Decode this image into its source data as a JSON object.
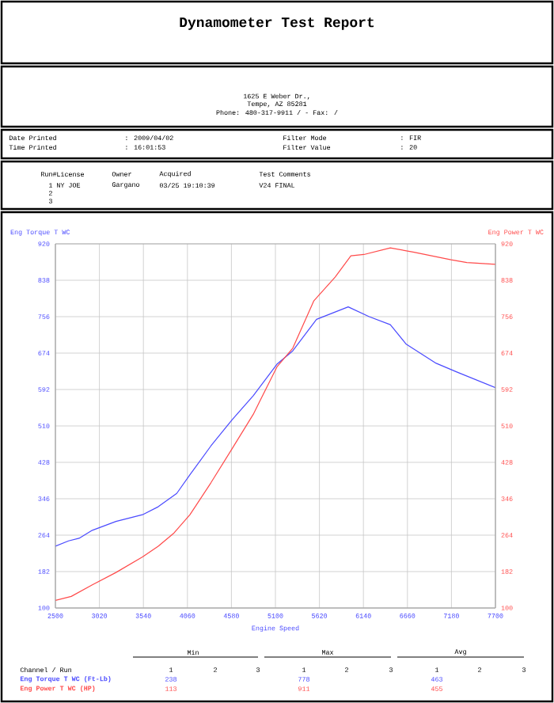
{
  "chart_data": {
    "type": "line",
    "title": "Dynamometer Test Report",
    "xlabel": "Engine Speed",
    "ylabel": "Eng Torque T WC",
    "y2label": "Eng Power T WC",
    "xlim": [
      2500,
      7700
    ],
    "xticks": [
      2500,
      3020,
      3540,
      4060,
      4580,
      5100,
      5620,
      6140,
      6660,
      7180,
      7700
    ],
    "ylim": [
      100,
      920
    ],
    "yticks": [
      100,
      182,
      264,
      346,
      428,
      510,
      592,
      674,
      756,
      838,
      920
    ],
    "y2lim": [
      100,
      920
    ],
    "y2ticks": [
      100,
      182,
      264,
      346,
      428,
      510,
      592,
      674,
      756,
      838,
      920
    ],
    "grid": true,
    "series": [
      {
        "name": "Eng Torque T WC (Ft-Lb)",
        "color": "#4a4aff",
        "x": [
          2500,
          2655,
          2780,
          2936,
          3216,
          3529,
          3715,
          3934,
          4090,
          4338,
          4589,
          4838,
          5118,
          5305,
          5586,
          5960,
          6208,
          6458,
          6646,
          7000,
          7249,
          7700
        ],
        "values": [
          239,
          251,
          257,
          275,
          295,
          310,
          328,
          358,
          400,
          465,
          524,
          578,
          649,
          679,
          750,
          778,
          756,
          738,
          694,
          651,
          631,
          596
        ]
      },
      {
        "name": "Eng Power T WC (HP)",
        "color": "#ff4a4a",
        "axis": "y2",
        "x": [
          2500,
          2687,
          2936,
          3216,
          3529,
          3715,
          3902,
          4090,
          4338,
          4589,
          4838,
          5118,
          5305,
          5555,
          5805,
          5992,
          6146,
          6458,
          6739,
          7175,
          7362,
          7700
        ],
        "values": [
          117,
          126,
          152,
          180,
          215,
          239,
          269,
          310,
          382,
          459,
          536,
          643,
          685,
          792,
          845,
          893,
          896,
          911,
          901,
          884,
          878,
          874
        ]
      }
    ],
    "annotations": [
      "1625 E Weber Dr.,",
      "Tempe, AZ  85281",
      "Phone: 480-317-9911 /  - Fax:  /",
      "Date Printed",
      ": 2009/04/02",
      "Filter Mode",
      ": FIR",
      "Time Printed",
      ": 16:01:53",
      "Filter Value",
      ": 20",
      "Run#",
      "License",
      "Owner",
      "Acquired",
      "Test Comments",
      "1",
      "NY JOE",
      "Gargano",
      "03/25 19:10:39",
      "V24 FINAL",
      "2",
      "3",
      "Min",
      "Max",
      "Avg",
      "Channel / Run",
      "1",
      "2",
      "3",
      "1",
      "2",
      "3",
      "1",
      "2",
      "3",
      "238",
      "778",
      "463",
      "113",
      "911",
      "455"
    ]
  }
}
